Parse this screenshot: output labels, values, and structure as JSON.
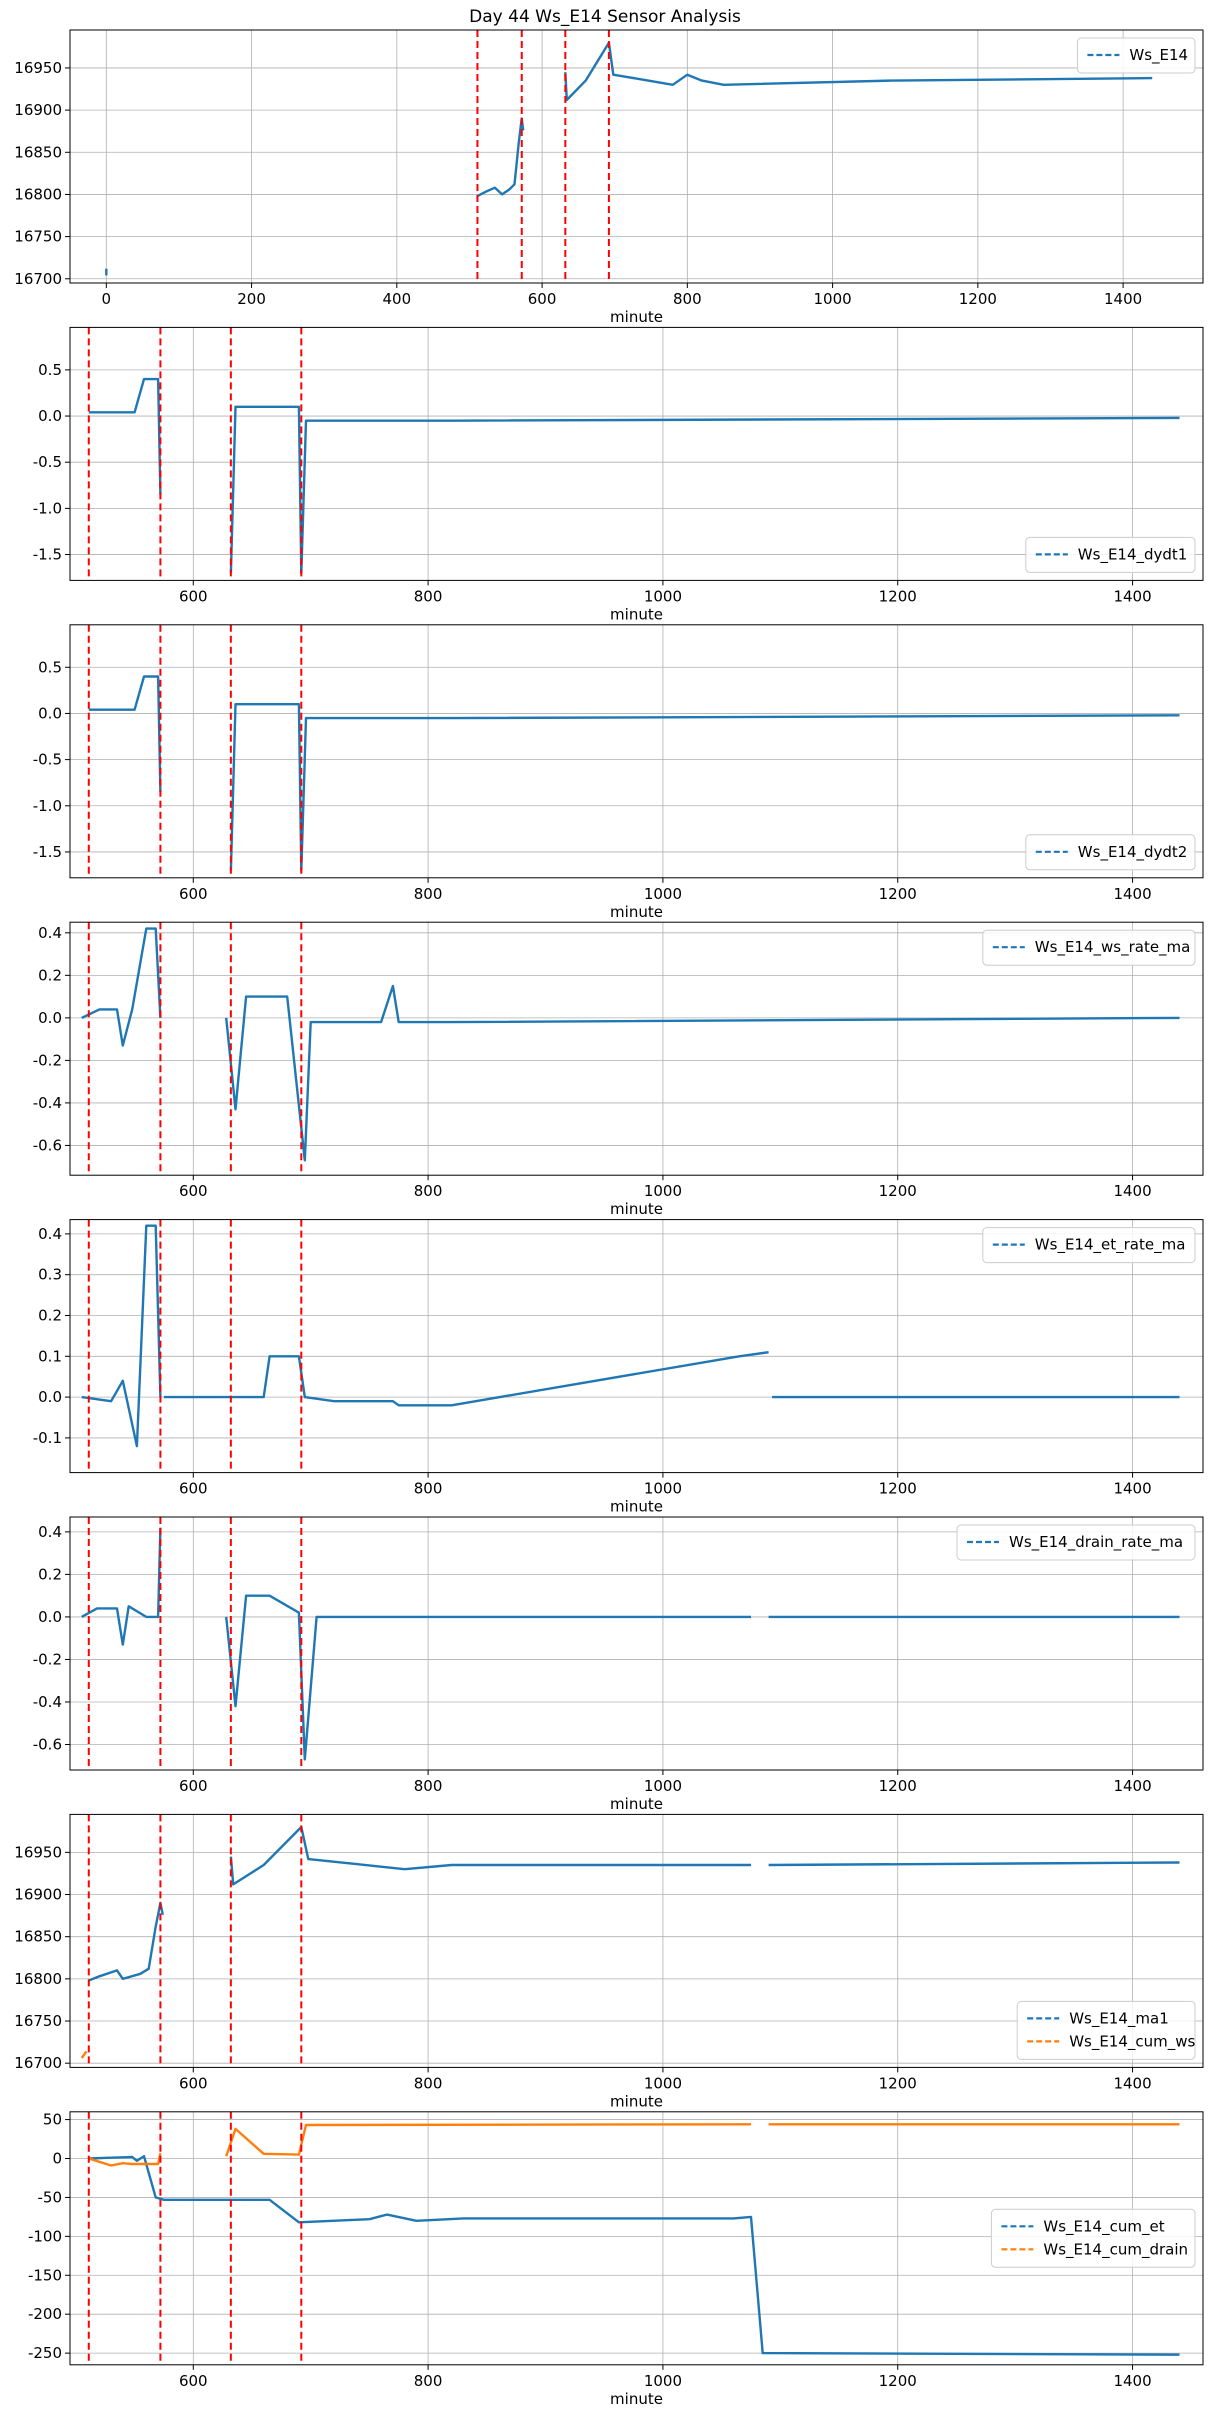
{
  "suptitle": "Day 44 Ws_E14 Sensor Analysis",
  "colors": {
    "blue": "#1f77b4",
    "orange": "#ff7f0e",
    "vline": "#ff0000",
    "grid": "#b0b0b0"
  },
  "chart_data": [
    {
      "type": "line",
      "xlabel": "minute",
      "xlim": [
        -50,
        1510
      ],
      "ylim": [
        16695,
        16995
      ],
      "xticks": [
        0,
        200,
        400,
        600,
        800,
        1000,
        1200,
        1400
      ],
      "yticks": [
        16700,
        16750,
        16800,
        16850,
        16900,
        16950
      ],
      "legend": "upper right",
      "vlines": [
        511,
        572,
        632,
        692
      ],
      "series": [
        {
          "name": "Ws_E14",
          "color": "blue",
          "style": "dashed",
          "segments": [
            [
              [
                0,
                16704
              ],
              [
                0,
                16712
              ]
            ],
            [
              [
                511,
                16798
              ],
              [
                522,
                16803
              ],
              [
                535,
                16808
              ],
              [
                545,
                16800
              ],
              [
                555,
                16806
              ],
              [
                562,
                16812
              ],
              [
                568,
                16862
              ],
              [
                572,
                16890
              ],
              [
                574,
                16876
              ]
            ],
            [
              [
                632,
                16945
              ],
              [
                634,
                16912
              ],
              [
                660,
                16935
              ],
              [
                692,
                16980
              ],
              [
                698,
                16942
              ],
              [
                740,
                16936
              ],
              [
                780,
                16930
              ],
              [
                800,
                16942
              ],
              [
                820,
                16935
              ],
              [
                850,
                16930
              ],
              [
                1080,
                16935
              ],
              [
                1085,
                16935
              ],
              [
                1440,
                16938
              ]
            ]
          ]
        }
      ]
    },
    {
      "type": "line",
      "xlabel": "minute",
      "xlim": [
        495,
        1460
      ],
      "ylim": [
        -1.78,
        0.96
      ],
      "xticks": [
        600,
        800,
        1000,
        1200,
        1400
      ],
      "yticks": [
        0.5,
        0.0,
        -0.5,
        -1.0,
        -1.5
      ],
      "ytick_labels": [
        "0.5",
        "0.0",
        "-0.5",
        "-1.0",
        "-1.5"
      ],
      "legend": "lower right",
      "vlines": [
        511,
        572,
        632,
        692
      ],
      "series": [
        {
          "name": "Ws_E14_dydt1",
          "color": "blue",
          "style": "dashed",
          "segments": [
            [
              [
                511,
                0.04
              ],
              [
                550,
                0.04
              ],
              [
                558,
                0.4
              ],
              [
                570,
                0.4
              ],
              [
                572,
                -0.85
              ]
            ],
            [
              [
                632,
                -1.7
              ],
              [
                636,
                0.1
              ],
              [
                690,
                0.1
              ],
              [
                692,
                -1.7
              ],
              [
                696,
                -0.05
              ],
              [
                820,
                -0.05
              ],
              [
                1440,
                -0.02
              ]
            ]
          ]
        }
      ]
    },
    {
      "type": "line",
      "xlabel": "minute",
      "xlim": [
        495,
        1460
      ],
      "ylim": [
        -1.78,
        0.96
      ],
      "xticks": [
        600,
        800,
        1000,
        1200,
        1400
      ],
      "yticks": [
        0.5,
        0.0,
        -0.5,
        -1.0,
        -1.5
      ],
      "ytick_labels": [
        "0.5",
        "0.0",
        "-0.5",
        "-1.0",
        "-1.5"
      ],
      "legend": "lower right",
      "vlines": [
        511,
        572,
        632,
        692
      ],
      "series": [
        {
          "name": "Ws_E14_dydt2",
          "color": "blue",
          "style": "dashed",
          "segments": [
            [
              [
                511,
                0.04
              ],
              [
                550,
                0.04
              ],
              [
                558,
                0.4
              ],
              [
                570,
                0.4
              ],
              [
                572,
                -0.85
              ]
            ],
            [
              [
                632,
                -1.7
              ],
              [
                636,
                0.1
              ],
              [
                690,
                0.1
              ],
              [
                692,
                -1.7
              ],
              [
                696,
                -0.05
              ],
              [
                820,
                -0.05
              ],
              [
                1440,
                -0.02
              ]
            ]
          ]
        }
      ]
    },
    {
      "type": "line",
      "xlabel": "minute",
      "xlim": [
        495,
        1460
      ],
      "ylim": [
        -0.74,
        0.45
      ],
      "xticks": [
        600,
        800,
        1000,
        1200,
        1400
      ],
      "yticks": [
        0.4,
        0.2,
        0.0,
        -0.2,
        -0.4,
        -0.6
      ],
      "ytick_labels": [
        "0.4",
        "0.2",
        "0.0",
        "-0.2",
        "-0.4",
        "-0.6"
      ],
      "legend": "upper right",
      "vlines": [
        511,
        572,
        632,
        692
      ],
      "series": [
        {
          "name": "Ws_E14_ws_rate_ma",
          "color": "blue",
          "style": "dashed",
          "segments": [
            [
              [
                505,
                0.0
              ],
              [
                520,
                0.04
              ],
              [
                535,
                0.04
              ],
              [
                540,
                -0.13
              ],
              [
                548,
                0.04
              ],
              [
                560,
                0.42
              ],
              [
                568,
                0.42
              ],
              [
                572,
                0.0
              ]
            ],
            [
              [
                628,
                0.0
              ],
              [
                636,
                -0.43
              ],
              [
                645,
                0.1
              ],
              [
                680,
                0.1
              ],
              [
                695,
                -0.67
              ],
              [
                700,
                -0.02
              ],
              [
                760,
                -0.02
              ],
              [
                770,
                0.15
              ],
              [
                775,
                -0.02
              ],
              [
                820,
                -0.02
              ],
              [
                1440,
                0.0
              ]
            ]
          ]
        }
      ]
    },
    {
      "type": "line",
      "xlabel": "minute",
      "xlim": [
        495,
        1460
      ],
      "ylim": [
        -0.185,
        0.435
      ],
      "xticks": [
        600,
        800,
        1000,
        1200,
        1400
      ],
      "yticks": [
        0.4,
        0.3,
        0.2,
        0.1,
        0.0,
        -0.1
      ],
      "ytick_labels": [
        "0.4",
        "0.3",
        "0.2",
        "0.1",
        "0.0",
        "-0.1"
      ],
      "legend": "upper right",
      "vlines": [
        511,
        572,
        632,
        692
      ],
      "series": [
        {
          "name": "Ws_E14_et_rate_ma",
          "color": "blue",
          "style": "dashed",
          "segments": [
            [
              [
                505,
                0.0
              ],
              [
                530,
                -0.01
              ],
              [
                540,
                0.04
              ],
              [
                552,
                -0.12
              ],
              [
                560,
                0.42
              ],
              [
                568,
                0.42
              ],
              [
                572,
                0.0
              ]
            ],
            [
              [
                575,
                0.0
              ],
              [
                660,
                0.0
              ],
              [
                665,
                0.1
              ],
              [
                690,
                0.1
              ],
              [
                695,
                0.0
              ],
              [
                720,
                -0.01
              ],
              [
                770,
                -0.01
              ],
              [
                775,
                -0.02
              ],
              [
                820,
                -0.02
              ],
              [
                1065,
                0.1
              ],
              [
                1090,
                0.11
              ]
            ],
            [
              [
                1093,
                0.0
              ],
              [
                1440,
                0.0
              ]
            ]
          ]
        }
      ]
    },
    {
      "type": "line",
      "xlabel": "minute",
      "xlim": [
        495,
        1460
      ],
      "ylim": [
        -0.72,
        0.47
      ],
      "xticks": [
        600,
        800,
        1000,
        1200,
        1400
      ],
      "yticks": [
        0.4,
        0.2,
        0.0,
        -0.2,
        -0.4,
        -0.6
      ],
      "ytick_labels": [
        "0.4",
        "0.2",
        "0.0",
        "-0.2",
        "-0.4",
        "-0.6"
      ],
      "legend": "upper right",
      "vlines": [
        511,
        572,
        632,
        692
      ],
      "series": [
        {
          "name": "Ws_E14_drain_rate_ma",
          "color": "blue",
          "style": "dashed",
          "segments": [
            [
              [
                505,
                0.0
              ],
              [
                518,
                0.04
              ],
              [
                535,
                0.04
              ],
              [
                540,
                -0.13
              ],
              [
                545,
                0.05
              ],
              [
                560,
                0.0
              ],
              [
                570,
                0.0
              ],
              [
                572,
                0.42
              ]
            ],
            [
              [
                628,
                0.0
              ],
              [
                636,
                -0.42
              ],
              [
                645,
                0.1
              ],
              [
                665,
                0.1
              ],
              [
                690,
                0.02
              ],
              [
                695,
                -0.67
              ],
              [
                705,
                0.0
              ],
              [
                1075,
                0.0
              ]
            ],
            [
              [
                1090,
                0.0
              ],
              [
                1440,
                0.0
              ]
            ]
          ]
        }
      ]
    },
    {
      "type": "line",
      "xlabel": "minute",
      "xlim": [
        495,
        1460
      ],
      "ylim": [
        16695,
        16995
      ],
      "xticks": [
        600,
        800,
        1000,
        1200,
        1400
      ],
      "yticks": [
        16700,
        16750,
        16800,
        16850,
        16900,
        16950
      ],
      "legend": "lower right",
      "vlines": [
        511,
        572,
        632,
        692
      ],
      "series": [
        {
          "name": "Ws_E14_ma1",
          "color": "blue",
          "style": "dashed",
          "segments": [
            [
              [
                511,
                16798
              ],
              [
                520,
                16803
              ],
              [
                535,
                16810
              ],
              [
                540,
                16800
              ],
              [
                555,
                16806
              ],
              [
                562,
                16812
              ],
              [
                568,
                16862
              ],
              [
                572,
                16890
              ],
              [
                574,
                16876
              ]
            ],
            [
              [
                632,
                16945
              ],
              [
                634,
                16912
              ],
              [
                660,
                16935
              ],
              [
                692,
                16980
              ],
              [
                698,
                16942
              ],
              [
                740,
                16936
              ],
              [
                780,
                16930
              ],
              [
                820,
                16935
              ],
              [
                1075,
                16935
              ]
            ],
            [
              [
                1090,
                16935
              ],
              [
                1440,
                16938
              ]
            ]
          ]
        },
        {
          "name": "Ws_E14_cum_ws",
          "color": "orange",
          "style": "dashed",
          "segments": [
            [
              [
                505,
                16706
              ],
              [
                509,
                16714
              ]
            ]
          ]
        }
      ]
    },
    {
      "type": "line",
      "xlabel": "minute",
      "xlim": [
        495,
        1460
      ],
      "ylim": [
        -265,
        60
      ],
      "xticks": [
        600,
        800,
        1000,
        1200,
        1400
      ],
      "yticks": [
        50,
        0,
        -50,
        -100,
        -150,
        -200,
        -250
      ],
      "ytick_labels": [
        "50",
        "0",
        "-50",
        "-100",
        "-150",
        "-200",
        "-250"
      ],
      "legend": "center right",
      "vlines": [
        511,
        572,
        632,
        692
      ],
      "series": [
        {
          "name": "Ws_E14_cum_et",
          "color": "blue",
          "style": "dashed",
          "segments": [
            [
              [
                511,
                0
              ],
              [
                530,
                1
              ],
              [
                548,
                2
              ],
              [
                552,
                -3
              ],
              [
                558,
                3
              ],
              [
                568,
                -50
              ],
              [
                575,
                -53
              ],
              [
                665,
                -53
              ],
              [
                690,
                -82
              ],
              [
                750,
                -78
              ],
              [
                765,
                -72
              ],
              [
                790,
                -80
              ],
              [
                830,
                -77
              ],
              [
                1060,
                -77
              ],
              [
                1075,
                -75
              ],
              [
                1085,
                -250
              ],
              [
                1440,
                -252
              ]
            ]
          ]
        },
        {
          "name": "Ws_E14_cum_drain",
          "color": "orange",
          "style": "dashed",
          "segments": [
            [
              [
                511,
                0
              ],
              [
                530,
                -9
              ],
              [
                540,
                -6
              ],
              [
                548,
                -7
              ],
              [
                560,
                -7
              ],
              [
                570,
                -7
              ],
              [
                572,
                7
              ]
            ],
            [
              [
                628,
                3
              ],
              [
                636,
                38
              ],
              [
                660,
                6
              ],
              [
                690,
                5
              ],
              [
                696,
                43
              ],
              [
                1075,
                44
              ]
            ],
            [
              [
                1090,
                44
              ],
              [
                1440,
                44
              ]
            ]
          ]
        }
      ]
    }
  ]
}
